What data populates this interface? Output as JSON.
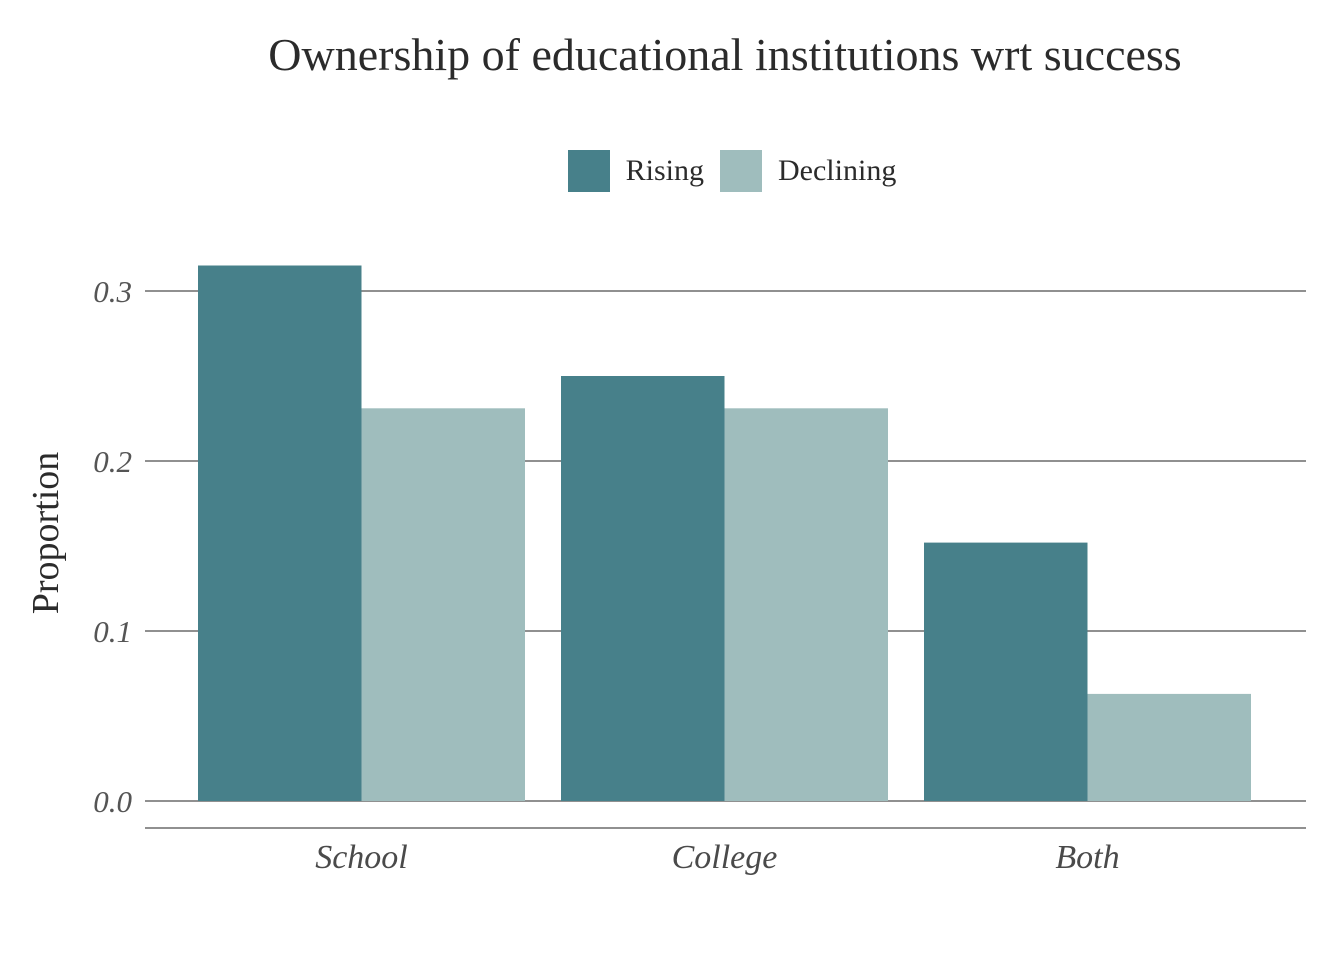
{
  "chart_data": {
    "type": "bar",
    "title": "Ownership of educational institutions wrt success",
    "xlabel": "",
    "ylabel": "Proportion",
    "categories": [
      "School",
      "College",
      "Both"
    ],
    "series": [
      {
        "name": "Rising",
        "color": "#47808A",
        "values": [
          0.315,
          0.25,
          0.152
        ]
      },
      {
        "name": "Declining",
        "color": "#9FBDBD",
        "values": [
          0.231,
          0.231,
          0.063
        ]
      }
    ],
    "yticks": [
      "0.0",
      "0.1",
      "0.2",
      "0.3"
    ],
    "ylim": [
      0,
      0.34
    ],
    "grid": "horizontal",
    "legend_position": "top"
  }
}
